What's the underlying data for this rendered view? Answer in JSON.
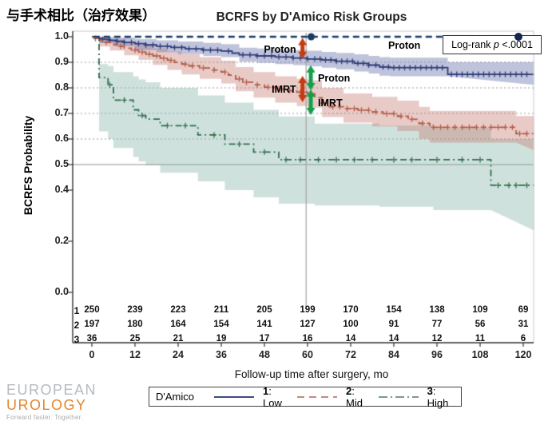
{
  "slide": {
    "heading": "与手术相比（治疗效果）"
  },
  "chart": {
    "title": "BCRFS by D'Amico Risk Groups",
    "x_axis_label": "Follow-up time after surgery, mo",
    "y_axis_label": "BCRFS Probability",
    "logrank": {
      "prefix": "Log-rank ",
      "stat": "p",
      "value": " <.0001"
    },
    "proton_right_label": "Proton"
  },
  "legend": {
    "title": "D'Amico",
    "items": [
      {
        "num": "1",
        "rest": ": Low",
        "color": "#3c4a84",
        "dash": ""
      },
      {
        "num": "2",
        "rest": ": Mid",
        "color": "#c5897e",
        "dash": "9 6"
      },
      {
        "num": "3",
        "rest": ": High",
        "color": "#7b9a8e",
        "dash": "11 4 2 4"
      }
    ]
  },
  "logo": {
    "line1": "EUROPEAN",
    "line2": "UROLOGY",
    "tagline": "Forward faster. Together."
  },
  "chart_data": {
    "type": "line",
    "subtype": "kaplan-meier-step",
    "title": "BCRFS by D'Amico Risk Groups",
    "xlabel": "Follow-up time after surgery, mo",
    "ylabel": "BCRFS Probability",
    "xlim": [
      0,
      123
    ],
    "ylim": [
      0,
      1.02
    ],
    "x_ticks": [
      0,
      12,
      24,
      36,
      48,
      60,
      72,
      84,
      96,
      108,
      120
    ],
    "y_tick_values": [
      1.0,
      0.9,
      0.8,
      0.7,
      0.6,
      0.5,
      0.4,
      0.2,
      0.0
    ],
    "y_tick_labels": [
      "1.0",
      "0.9",
      "0.8",
      "0.7",
      "0.6",
      "0.5",
      "0.4",
      "0.2",
      "0.0"
    ],
    "gridlines_dotted_at": [
      0.9,
      0.8,
      0.7,
      0.6
    ],
    "reference_line_solid_at": 0.5,
    "vertical_line_at_x": 60,
    "proton_reference": {
      "y": 1.0,
      "style": "dashed",
      "color": "#1b3a66",
      "marker_x": [
        61,
        119
      ]
    },
    "series": [
      {
        "name": "1: Low",
        "pattern": "solid",
        "color": "#303d78",
        "band_color": "rgba(113,123,176,0.45)",
        "steps": [
          [
            0,
            1.0
          ],
          [
            1,
            0.997
          ],
          [
            2,
            0.993
          ],
          [
            3,
            0.99
          ],
          [
            5,
            0.986
          ],
          [
            7,
            0.982
          ],
          [
            9,
            0.978
          ],
          [
            12,
            0.973
          ],
          [
            15,
            0.968
          ],
          [
            18,
            0.963
          ],
          [
            22,
            0.958
          ],
          [
            26,
            0.953
          ],
          [
            31,
            0.948
          ],
          [
            36,
            0.944
          ],
          [
            39,
            0.936
          ],
          [
            41,
            0.929
          ],
          [
            46,
            0.925
          ],
          [
            51,
            0.921
          ],
          [
            56,
            0.917
          ],
          [
            60,
            0.913
          ],
          [
            64,
            0.909
          ],
          [
            68,
            0.904
          ],
          [
            73,
            0.896
          ],
          [
            77,
            0.889
          ],
          [
            80,
            0.882
          ],
          [
            83,
            0.879
          ],
          [
            99,
            0.853
          ]
        ],
        "ci": [
          [
            0,
            1.0,
            1.0
          ],
          [
            2,
            0.975,
            1.0
          ],
          [
            6,
            0.963,
            0.997
          ],
          [
            12,
            0.948,
            0.991
          ],
          [
            18,
            0.94,
            0.986
          ],
          [
            24,
            0.932,
            0.981
          ],
          [
            31,
            0.925,
            0.976
          ],
          [
            36,
            0.92,
            0.971
          ],
          [
            41,
            0.902,
            0.957
          ],
          [
            46,
            0.898,
            0.954
          ],
          [
            51,
            0.893,
            0.951
          ],
          [
            56,
            0.889,
            0.948
          ],
          [
            60,
            0.884,
            0.945
          ],
          [
            64,
            0.879,
            0.941
          ],
          [
            68,
            0.873,
            0.937
          ],
          [
            73,
            0.864,
            0.931
          ],
          [
            77,
            0.856,
            0.925
          ],
          [
            80,
            0.848,
            0.92
          ],
          [
            83,
            0.845,
            0.918
          ],
          [
            99,
            0.812,
            0.901
          ]
        ],
        "censors": [
          3,
          5,
          7,
          9,
          11,
          13,
          15,
          17,
          19,
          21,
          23,
          25,
          27,
          29,
          31,
          33,
          35,
          38,
          42,
          44,
          46,
          48,
          50,
          52,
          54,
          56,
          58,
          60,
          62,
          63.5,
          65,
          66.5,
          68,
          69.5,
          71,
          72.5,
          74,
          75.5,
          77,
          79,
          81,
          82.5,
          84,
          85.5,
          87,
          88.5,
          90,
          91.5,
          93,
          94.5,
          96,
          97.5,
          100,
          101.5,
          103,
          104.5,
          106,
          107.5,
          109,
          110.5,
          112,
          113.5,
          115,
          116.5,
          118,
          119.5,
          121
        ]
      },
      {
        "name": "2: Mid",
        "pattern": "dashed",
        "color": "#b25c46",
        "band_color": "rgba(198,122,112,0.40)",
        "steps": [
          [
            0,
            1.0
          ],
          [
            1,
            0.993
          ],
          [
            2,
            0.986
          ],
          [
            3,
            0.978
          ],
          [
            5,
            0.97
          ],
          [
            7,
            0.962
          ],
          [
            9,
            0.955
          ],
          [
            11,
            0.948
          ],
          [
            13,
            0.94
          ],
          [
            15,
            0.932
          ],
          [
            17,
            0.925
          ],
          [
            19,
            0.916
          ],
          [
            21,
            0.908
          ],
          [
            23,
            0.9
          ],
          [
            25,
            0.893
          ],
          [
            27,
            0.886
          ],
          [
            30,
            0.878
          ],
          [
            33,
            0.87
          ],
          [
            36,
            0.862
          ],
          [
            38,
            0.85
          ],
          [
            40,
            0.835
          ],
          [
            42,
            0.822
          ],
          [
            45,
            0.812
          ],
          [
            48,
            0.803
          ],
          [
            51,
            0.795
          ],
          [
            54,
            0.789
          ],
          [
            57,
            0.783
          ],
          [
            60,
            0.777
          ],
          [
            62,
            0.761
          ],
          [
            64,
            0.74
          ],
          [
            66,
            0.726
          ],
          [
            70,
            0.719
          ],
          [
            74,
            0.713
          ],
          [
            78,
            0.706
          ],
          [
            81,
            0.699
          ],
          [
            85,
            0.689
          ],
          [
            88,
            0.677
          ],
          [
            91,
            0.661
          ],
          [
            94,
            0.646
          ],
          [
            118,
            0.621
          ]
        ],
        "ci": [
          [
            0,
            1.0,
            1.0
          ],
          [
            2,
            0.962,
            0.998
          ],
          [
            5,
            0.946,
            0.99
          ],
          [
            9,
            0.927,
            0.978
          ],
          [
            13,
            0.909,
            0.967
          ],
          [
            17,
            0.89,
            0.955
          ],
          [
            21,
            0.87,
            0.943
          ],
          [
            25,
            0.852,
            0.931
          ],
          [
            30,
            0.835,
            0.92
          ],
          [
            36,
            0.817,
            0.906
          ],
          [
            40,
            0.787,
            0.881
          ],
          [
            45,
            0.762,
            0.862
          ],
          [
            51,
            0.742,
            0.845
          ],
          [
            57,
            0.729,
            0.835
          ],
          [
            60,
            0.723,
            0.83
          ],
          [
            64,
            0.686,
            0.8
          ],
          [
            70,
            0.664,
            0.778
          ],
          [
            78,
            0.649,
            0.765
          ],
          [
            85,
            0.631,
            0.75
          ],
          [
            91,
            0.601,
            0.726
          ],
          [
            94,
            0.586,
            0.71
          ],
          [
            118,
            0.556,
            0.69
          ]
        ],
        "censors": [
          1,
          4,
          8,
          12,
          14,
          16,
          18,
          20,
          22,
          26,
          28,
          31,
          34,
          37,
          41,
          43,
          46,
          49,
          52,
          55,
          58,
          61,
          64,
          67,
          69,
          71,
          73,
          75,
          77,
          79,
          82,
          84,
          86,
          89,
          92,
          95,
          97,
          99,
          101,
          103,
          105,
          107,
          109,
          111,
          113,
          115,
          117,
          119,
          121
        ]
      },
      {
        "name": "3: High",
        "pattern": "dashdot",
        "color": "#2e6e4e",
        "band_color": "rgba(130,175,163,0.38)",
        "steps": [
          [
            0,
            1.0
          ],
          [
            2,
            0.84
          ],
          [
            4.5,
            0.812
          ],
          [
            6,
            0.752
          ],
          [
            11.5,
            0.714
          ],
          [
            13,
            0.692
          ],
          [
            15,
            0.678
          ],
          [
            19,
            0.652
          ],
          [
            29.5,
            0.616
          ],
          [
            37,
            0.58
          ],
          [
            45,
            0.549
          ],
          [
            52,
            0.519
          ],
          [
            111,
            0.419
          ]
        ],
        "ci": [
          [
            0,
            1.0,
            1.0
          ],
          [
            2,
            0.63,
            0.893
          ],
          [
            4.5,
            0.6,
            0.885
          ],
          [
            6,
            0.565,
            0.862
          ],
          [
            11.5,
            0.53,
            0.845
          ],
          [
            13,
            0.512,
            0.833
          ],
          [
            15,
            0.497,
            0.822
          ],
          [
            19,
            0.468,
            0.8
          ],
          [
            29.5,
            0.434,
            0.77
          ],
          [
            37,
            0.4,
            0.742
          ],
          [
            45,
            0.372,
            0.714
          ],
          [
            52,
            0.347,
            0.688
          ],
          [
            62,
            0.34,
            0.66
          ],
          [
            80,
            0.335,
            0.652
          ],
          [
            95,
            0.322,
            0.643
          ],
          [
            111,
            0.242,
            0.6
          ]
        ],
        "censors": [
          5,
          9,
          14,
          21,
          26,
          34,
          41,
          48,
          54,
          58,
          63,
          68,
          73,
          78,
          84,
          89,
          96,
          103,
          108,
          113,
          116,
          118,
          121
        ]
      }
    ],
    "annotations": {
      "arrows": [
        {
          "x": 58.6,
          "from": 0.995,
          "to": 0.913,
          "color": "#c43b12",
          "label": "Proton",
          "side": "left"
        },
        {
          "x": 60.9,
          "from": 0.888,
          "to": 0.791,
          "color": "#14a04a",
          "label": "Proton",
          "side": "right"
        },
        {
          "x": 58.6,
          "from": 0.847,
          "to": 0.744,
          "color": "#c43b12",
          "label": "IMRT",
          "side": "left"
        },
        {
          "x": 60.9,
          "from": 0.794,
          "to": 0.694,
          "color": "#14a04a",
          "label": "IMRT",
          "side": "right"
        }
      ],
      "proton_right_label": "Proton",
      "logrank_text": "Log-rank p <.0001"
    },
    "risk_table": {
      "group_labels": [
        "1",
        "2",
        "3"
      ],
      "times": [
        0,
        12,
        24,
        36,
        48,
        60,
        72,
        84,
        96,
        108,
        120
      ],
      "counts": [
        [
          250,
          239,
          223,
          211,
          205,
          199,
          170,
          154,
          138,
          109,
          69
        ],
        [
          197,
          180,
          164,
          154,
          141,
          127,
          100,
          91,
          77,
          56,
          31
        ],
        [
          36,
          25,
          21,
          19,
          17,
          16,
          14,
          14,
          12,
          11,
          6
        ]
      ]
    }
  }
}
